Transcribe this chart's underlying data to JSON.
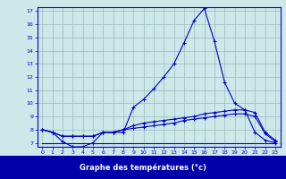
{
  "x": [
    0,
    1,
    2,
    3,
    4,
    5,
    6,
    7,
    8,
    9,
    10,
    11,
    12,
    13,
    14,
    15,
    16,
    17,
    18,
    19,
    20,
    21,
    22,
    23
  ],
  "line1": [
    8.0,
    7.8,
    7.1,
    6.7,
    6.7,
    7.0,
    7.8,
    7.8,
    7.8,
    9.7,
    10.3,
    11.1,
    12.0,
    13.0,
    14.6,
    16.3,
    17.2,
    14.7,
    11.6,
    10.0,
    9.5,
    7.8,
    7.2,
    7.0
  ],
  "line2": [
    8.0,
    7.8,
    7.5,
    7.5,
    7.5,
    7.5,
    7.8,
    7.8,
    8.0,
    8.3,
    8.5,
    8.6,
    8.7,
    8.8,
    8.9,
    9.0,
    9.2,
    9.3,
    9.4,
    9.5,
    9.5,
    9.3,
    7.8,
    7.2
  ],
  "line3": [
    8.0,
    7.8,
    7.5,
    7.5,
    7.5,
    7.5,
    7.8,
    7.8,
    8.0,
    8.1,
    8.2,
    8.3,
    8.4,
    8.5,
    8.7,
    8.8,
    8.9,
    9.0,
    9.1,
    9.2,
    9.2,
    9.0,
    7.7,
    7.1
  ],
  "line4": [
    7.0,
    7.0,
    7.0,
    7.0,
    7.0,
    7.0,
    7.0,
    7.0,
    7.0,
    7.0,
    7.0,
    7.0,
    7.0,
    7.0,
    7.0,
    7.0,
    7.0,
    7.0,
    7.0,
    7.0,
    7.0,
    7.0,
    7.0,
    7.0
  ],
  "xlim": [
    -0.5,
    23.5
  ],
  "ylim": [
    6.7,
    17.3
  ],
  "yticks": [
    7,
    8,
    9,
    10,
    11,
    12,
    13,
    14,
    15,
    16,
    17
  ],
  "xticks": [
    0,
    1,
    2,
    3,
    4,
    5,
    6,
    7,
    8,
    9,
    10,
    11,
    12,
    13,
    14,
    15,
    16,
    17,
    18,
    19,
    20,
    21,
    22,
    23
  ],
  "xlabel": "Graphe des températures (°c)",
  "line_color": "#0000cc",
  "bg_color": "#cce8e8",
  "grid_color": "#99bbbb",
  "label_bg": "#0000aa",
  "label_fg": "#ffffff"
}
